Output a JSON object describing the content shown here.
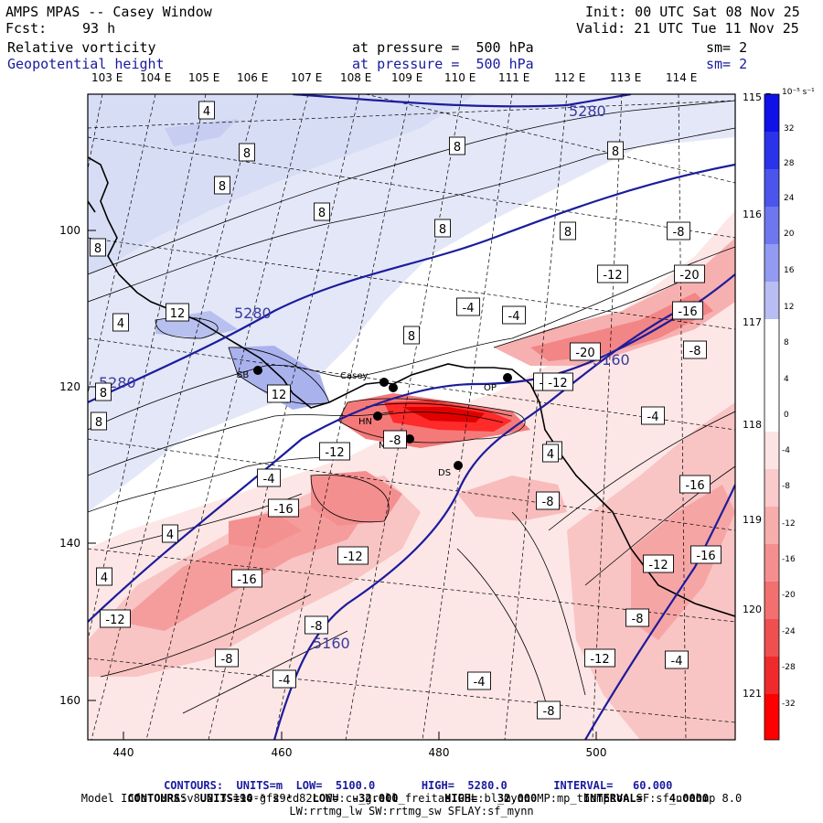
{
  "header": {
    "title": "AMPS MPAS -- Casey Window",
    "fcst_label": "Fcst:",
    "fcst_value": "93 h",
    "init": "Init: 00 UTC Sat 08 Nov 25",
    "valid": "Valid: 21 UTC Tue 11 Nov 25",
    "field1": {
      "name": "Relative vorticity",
      "level": "at pressure =  500 hPa",
      "sm": "sm= 2"
    },
    "field2": {
      "name": "Geopotential height",
      "level": "at pressure =  500 hPa",
      "sm": "sm= 2"
    }
  },
  "top_lon_labels": [
    "103 E",
    "104 E",
    "105 E",
    "106 E",
    "107 E",
    "108 E",
    "109 E",
    "110 E",
    "111 E",
    "112 E",
    "113 E",
    "114 E"
  ],
  "right_lat_labels": [
    "115 E",
    "116 E",
    "117 E",
    "118 E",
    "119 E",
    "120 E",
    "121 E"
  ],
  "x_ticks": [
    "440",
    "460",
    "480",
    "500"
  ],
  "y_ticks": [
    "100",
    "120",
    "140",
    "160"
  ],
  "colorbar": {
    "unit": "10⁻⁵ s⁻¹",
    "labels": [
      "32",
      "28",
      "24",
      "20",
      "16",
      "12",
      "8",
      "4",
      "0",
      "-4",
      "-8",
      "-12",
      "-16",
      "-20",
      "-24",
      "-28",
      "-32"
    ]
  },
  "stations": [
    {
      "code": "Casey"
    },
    {
      "code": "SB"
    },
    {
      "code": "HN"
    },
    {
      "code": "MZ"
    },
    {
      "code": "DS"
    },
    {
      "code": "OP"
    }
  ],
  "height_labels": [
    "5280",
    "5280",
    "5280",
    "5160",
    "5160"
  ],
  "vort_labels": [
    "4",
    "8",
    "8",
    "8",
    "8",
    "8",
    "8",
    "8",
    "8",
    "8",
    "4",
    "12",
    "12",
    "8",
    "8",
    "-4",
    "-4",
    "-12",
    "-20",
    "-16",
    "-8",
    "-8",
    "-8",
    "-20",
    "-4",
    "-12",
    "4",
    "-16",
    "-4",
    "4",
    "-8",
    "-12",
    "-16",
    "-16",
    "-12",
    "-16",
    "-12",
    "-8",
    "-8",
    "-4",
    "-4",
    "-12",
    "-8",
    "-4",
    "-8",
    "4",
    "-12",
    "-8",
    "4"
  ],
  "footer": {
    "line1_a": "CONTOURS:  UNITS=m  LOW=  5100.0",
    "line1_b": "HIGH=  5280.0",
    "line1_c": "INTERVAL=   60.000",
    "line2_a": "CONTOURS:  UNITS=10⁻⁵ s⁻¹   LOW=  -32.000",
    "line2_b": "HIGH=   32.000",
    "line2_c": "INTERVAL=    4.0000",
    "line3": "Model Info: MPASv8.2.3-194-gf29cd82c CU:cu_grell_freitas PBL:bl_mynn MP:mp_thompson SF:sf_noahmp 8.0",
    "line4": "LW:rrtmg_lw SW:rrtmg_sw SFLAY:sf_mynn"
  },
  "colors": {
    "pos_light": "#dfe4f6",
    "pos_mid": "#c2caf0",
    "pos_strong": "#9fa8ea",
    "neg_light": "#fde3e3",
    "neg_mid": "#f8b4b4",
    "neg_strong": "#f17d7d",
    "neg_max": "#ff2222",
    "height_contour": "#1c1c9c"
  }
}
